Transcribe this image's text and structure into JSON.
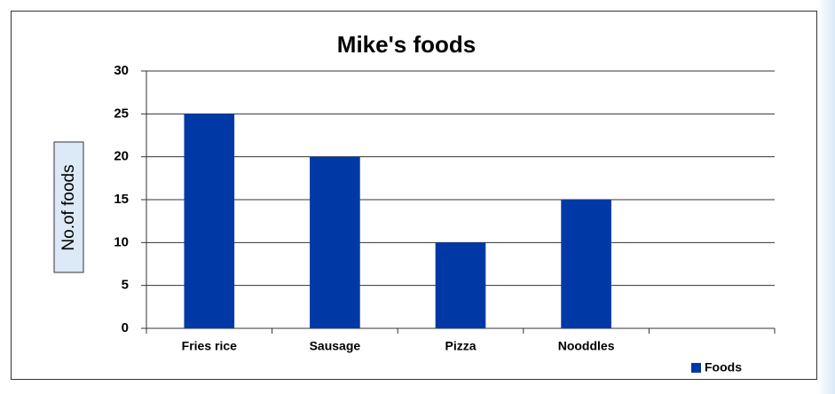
{
  "chart_data": {
    "type": "bar",
    "title": "Mike's  foods",
    "y_label": "No.of foods",
    "categories": [
      "Fries rice",
      "Sausage",
      "Pizza",
      "Nooddles",
      null
    ],
    "series": [
      {
        "name": "Foods",
        "color": "#0039a6",
        "values": [
          25,
          20,
          10,
          15,
          null
        ]
      }
    ],
    "ylim": [
      0,
      30
    ],
    "yticks": [
      0,
      5,
      10,
      15,
      20,
      25,
      30
    ],
    "grid": true,
    "legend": "bottom-right"
  }
}
